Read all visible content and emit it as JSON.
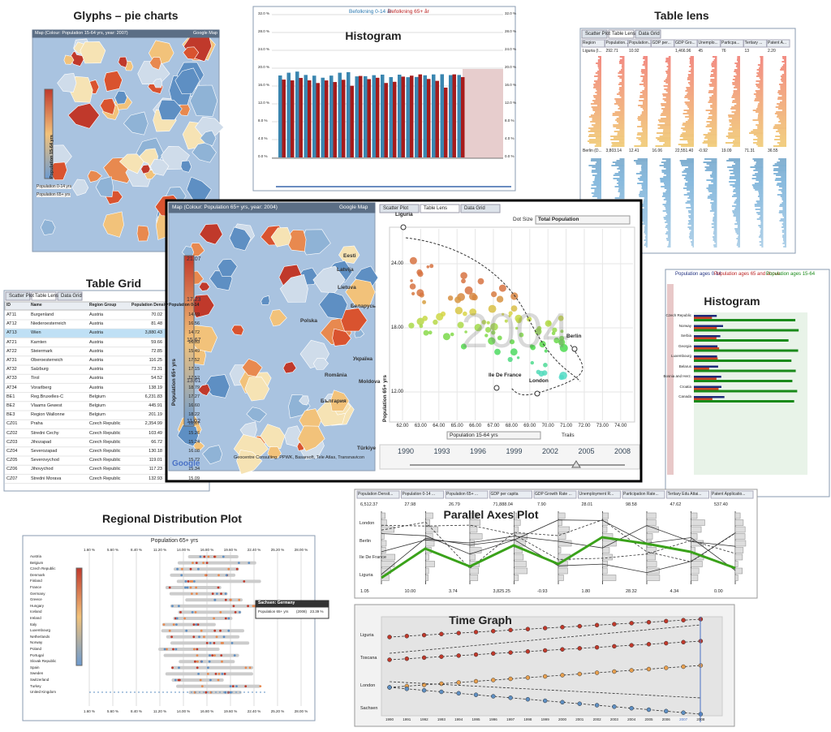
{
  "glyphs": {
    "title": "Glyphs – pie charts",
    "header": "Map (Colour: Population 15-64 yrs, year: 2007)",
    "button": "Google Map",
    "legend_label": "Population 15-64 yrs",
    "series": [
      "Population 0-14 yrs",
      "Population 65+ yrs"
    ]
  },
  "histogram_top": {
    "title": "Histogram",
    "legend": [
      "Befolkning 0-14 år",
      "Befolkning 65+ år"
    ],
    "yticks": [
      "32.0 %",
      "28.0 %",
      "24.0 %",
      "20.0 %",
      "16.0 %",
      "12.0 %",
      "8.0 %",
      "4.0 %",
      "0.0 %"
    ]
  },
  "table_lens": {
    "title": "Table lens",
    "tabs": [
      "Scatter Plot",
      "Table Lens",
      "Data Grid"
    ],
    "columns": [
      "Region",
      "Population...",
      "Population...",
      "GDP per...",
      "GDP Gro...",
      "Unemplo...",
      "Particpa...",
      "Tertiary ...",
      "Patent A..."
    ],
    "rows": [
      [
        "Liguria (I...",
        "292.71",
        "10.92",
        "",
        "1,466.96",
        "45",
        "76",
        "13",
        "2.20"
      ],
      [
        "Berlin (D...",
        "3,803.14",
        "12.41",
        "16.06",
        "22,551.40",
        "-0.92",
        "19.09",
        "71.31",
        "36.55"
      ]
    ]
  },
  "table_grid": {
    "title": "Table Grid",
    "tabs": [
      "Scatter Plot",
      "Table Lens",
      "Data Grid"
    ],
    "columns": [
      "ID",
      "Name",
      "Region Group",
      "Population Density",
      "Population 0-14"
    ],
    "rows": [
      [
        "AT11",
        "Burgenland",
        "Austria",
        "70.02",
        "14.69"
      ],
      [
        "AT12",
        "Niederoesterreich",
        "Austria",
        "81.48",
        "16.56"
      ],
      [
        "AT13",
        "Wien",
        "Austria",
        "3,880.43",
        "14.72"
      ],
      [
        "AT21",
        "Karnten",
        "Austria",
        "59.66",
        "16.03"
      ],
      [
        "AT22",
        "Steiermark",
        "Austria",
        "72.85",
        "15.49"
      ],
      [
        "AT31",
        "Oberoesterreich",
        "Austria",
        "116.25",
        "17.52"
      ],
      [
        "AT32",
        "Salzburg",
        "Austria",
        "73.31",
        "17.15"
      ],
      [
        "AT33",
        "Tirol",
        "Austria",
        "54.52",
        "17.52"
      ],
      [
        "AT34",
        "Vorarlberg",
        "Austria",
        "138.19",
        "18.79"
      ],
      [
        "BE1",
        "Reg.Bruxelles-C",
        "Belgium",
        "6,231.83",
        "17.27"
      ],
      [
        "BE2",
        "Vlaams Gewest",
        "Belgium",
        "445.91",
        "16.60"
      ],
      [
        "BE3",
        "Region Wallonne",
        "Belgium",
        "201.19",
        "18.22"
      ],
      [
        "CZ01",
        "Praha",
        "Czech Republic",
        "2,354.99",
        "12.67"
      ],
      [
        "CZ02",
        "Stredni Cechy",
        "Czech Republic",
        "103.49",
        "15.26"
      ],
      [
        "CZ03",
        "Jihozapad",
        "Czech Republic",
        "66.72",
        "15.24"
      ],
      [
        "CZ04",
        "Severozapad",
        "Czech Republic",
        "130.18",
        "16.08"
      ],
      [
        "CZ05",
        "Severovychod",
        "Czech Republic",
        "119.01",
        "15.72"
      ],
      [
        "CZ06",
        "Jihovychod",
        "Czech Republic",
        "117.23",
        "15.34"
      ],
      [
        "CZ07",
        "Stredni Morava",
        "Czech Republic",
        "132.93",
        "15.09"
      ]
    ]
  },
  "main": {
    "map_header": "Map (Colour: Population 65+ yrs, year: 2004)",
    "map_button": "Google Map",
    "legend": [
      "21.07",
      "17.23",
      "15.67",
      "13.61",
      "11.02"
    ],
    "legend_label": "Population 65+ yrs",
    "places": [
      "Eesti",
      "Latvija",
      "Lietuva",
      "Беларусь",
      "Polska",
      "Україна",
      "România",
      "България",
      "Moldova",
      "Türkiye"
    ],
    "copyright": "Geocentre Consulting, PPWK, Basarsoft, Tele Atlas, Transnavicon",
    "logo": "Google",
    "tabs": [
      "Scatter Plot",
      "Table Lens",
      "Data Grid"
    ],
    "dot_size_label": "Dot Size",
    "dot_size": "Total Population",
    "yticks": [
      "24.00",
      "18.00",
      "12.00"
    ],
    "xticks": [
      "62.00",
      "63.00",
      "64.00",
      "65.00",
      "66.00",
      "67.00",
      "68.00",
      "69.00",
      "70.00",
      "71.00",
      "72.00",
      "73.00",
      "74.00"
    ],
    "ylabel": "Population 65+ yrs",
    "xlabel": "Population 15-64 yrs",
    "year": "2004",
    "trails": "Trails",
    "points": [
      "Liguria",
      "Berlin",
      "Ile De France",
      "London"
    ],
    "years": [
      "1990",
      "1993",
      "1996",
      "1999",
      "2002",
      "2005",
      "2008"
    ]
  },
  "histogram_right": {
    "title": "Histogram",
    "legend": [
      "Population ages 0-14",
      "Population ages 65 and above",
      "Population ages 15-64"
    ],
    "categories": [
      "Czech Republic",
      "Norway",
      "Serbia",
      "Georgia",
      "Luxembourg",
      "Belarus",
      "Bosnia and Herz.",
      "Croatia",
      "Canada"
    ]
  },
  "regional": {
    "title": "Regional Distribution Plot",
    "subtitle": "Population 65+ yrs",
    "xticks": [
      "1.60 %",
      "5.60 %",
      "8.40 %",
      "11.20 %",
      "14.00 %",
      "16.80 %",
      "19.60 %",
      "22.40 %",
      "25.20 %",
      "28.00 %"
    ],
    "countries": [
      "Austria",
      "Belgium",
      "Czech Republic",
      "Denmark",
      "Finland",
      "France",
      "Germany",
      "Greece",
      "Hungary",
      "Iceland",
      "Ireland",
      "Italy",
      "Luxembourg",
      "Netherlands",
      "Norway",
      "Poland",
      "Portugal",
      "Slovak Republic",
      "Spain",
      "Sweden",
      "Switzerland",
      "Turkey",
      "United Kingdom"
    ],
    "tooltip_title": "Sachsen: Germany",
    "tooltip_label": "Population 65+ yrs",
    "tooltip_year": "(2008)",
    "tooltip_value": "23.39 %"
  },
  "parallel": {
    "title": "Parallel Axes Plot",
    "columns": [
      "Population Densit...",
      "Population 0-14 ...",
      "Population 65+ ...",
      "GDP per capita",
      "GDP Growth Rate ...",
      "Unemployment R...",
      "Participation Rate...",
      "Tertiary Edu Attai...",
      "Patent Applicatio..."
    ],
    "max": [
      "6,512.37",
      "27.98",
      "26.79",
      "71,888.04",
      "7.90",
      "28.01",
      "98.58",
      "47.62",
      "537.40"
    ],
    "min": [
      "1.05",
      "10.00",
      "3.74",
      "3,825.25",
      "-0.93",
      "1.80",
      "28.32",
      "4.34",
      "0.00"
    ],
    "labels": [
      "London",
      "Berlin",
      "Ile De France",
      "Liguria"
    ]
  },
  "time_graph": {
    "title": "Time Graph",
    "labels": [
      "Liguria",
      "Toscana",
      "London",
      "Sachsen"
    ],
    "years": [
      "1990",
      "1991",
      "1992",
      "1993",
      "1994",
      "1995",
      "1996",
      "1997",
      "1998",
      "1999",
      "2000",
      "2001",
      "2002",
      "2003",
      "2004",
      "2005",
      "2006",
      "2007",
      "2008"
    ]
  }
}
